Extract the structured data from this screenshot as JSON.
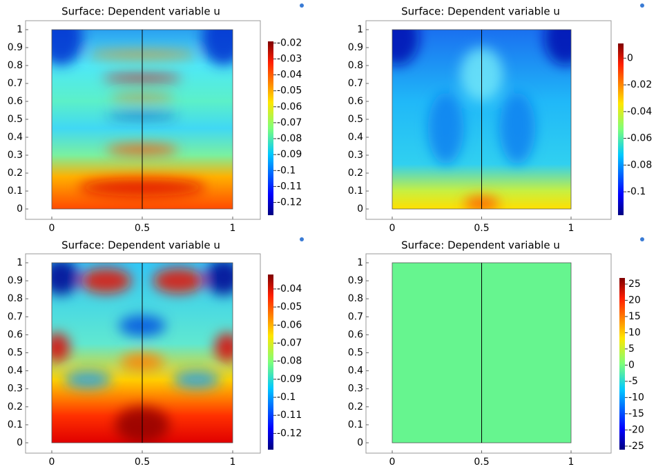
{
  "chart_data": [
    {
      "type": "surface",
      "title": "Surface: Dependent variable u",
      "xlim": [
        0,
        1
      ],
      "ylim": [
        0,
        1
      ],
      "xticks": [
        0,
        0.5,
        1
      ],
      "yticks": [
        0,
        0.1,
        0.2,
        0.3,
        0.4,
        0.5,
        0.6,
        0.7,
        0.8,
        0.9,
        1
      ],
      "clim": [
        -0.128,
        -0.019
      ],
      "cticks": [
        -0.02,
        -0.03,
        -0.04,
        -0.05,
        -0.06,
        -0.07,
        -0.08,
        -0.09,
        -0.1,
        -0.11,
        -0.12
      ]
    },
    {
      "type": "surface",
      "title": "Surface: Dependent variable u",
      "xlim": [
        0,
        1
      ],
      "ylim": [
        0,
        1
      ],
      "xticks": [
        0,
        0.5,
        1
      ],
      "yticks": [
        0,
        0.1,
        0.2,
        0.3,
        0.4,
        0.5,
        0.6,
        0.7,
        0.8,
        0.9,
        1
      ],
      "clim": [
        -0.1175,
        0.011
      ],
      "cticks": [
        0,
        -0.02,
        -0.04,
        -0.06,
        -0.08,
        -0.1
      ]
    },
    {
      "type": "surface",
      "title": "Surface: Dependent variable u",
      "xlim": [
        0,
        1
      ],
      "ylim": [
        0,
        1
      ],
      "xticks": [
        0,
        0.5,
        1
      ],
      "yticks": [
        0,
        0.1,
        0.2,
        0.3,
        0.4,
        0.5,
        0.6,
        0.7,
        0.8,
        0.9,
        1
      ],
      "clim": [
        -0.129,
        -0.032
      ],
      "cticks": [
        -0.04,
        -0.05,
        -0.06,
        -0.07,
        -0.08,
        -0.09,
        -0.1,
        -0.11,
        -0.12
      ]
    },
    {
      "type": "surface",
      "title": "Surface: Dependent variable u",
      "xlim": [
        0,
        1
      ],
      "ylim": [
        0,
        1
      ],
      "xticks": [
        0,
        0.5,
        1
      ],
      "yticks": [
        0,
        0.1,
        0.2,
        0.3,
        0.4,
        0.5,
        0.6,
        0.7,
        0.8,
        0.9,
        1
      ],
      "clim": [
        -26.1,
        26.9
      ],
      "cticks": [
        25,
        20,
        15,
        10,
        5,
        0,
        -5,
        -10,
        -15,
        -20,
        -25
      ]
    }
  ]
}
